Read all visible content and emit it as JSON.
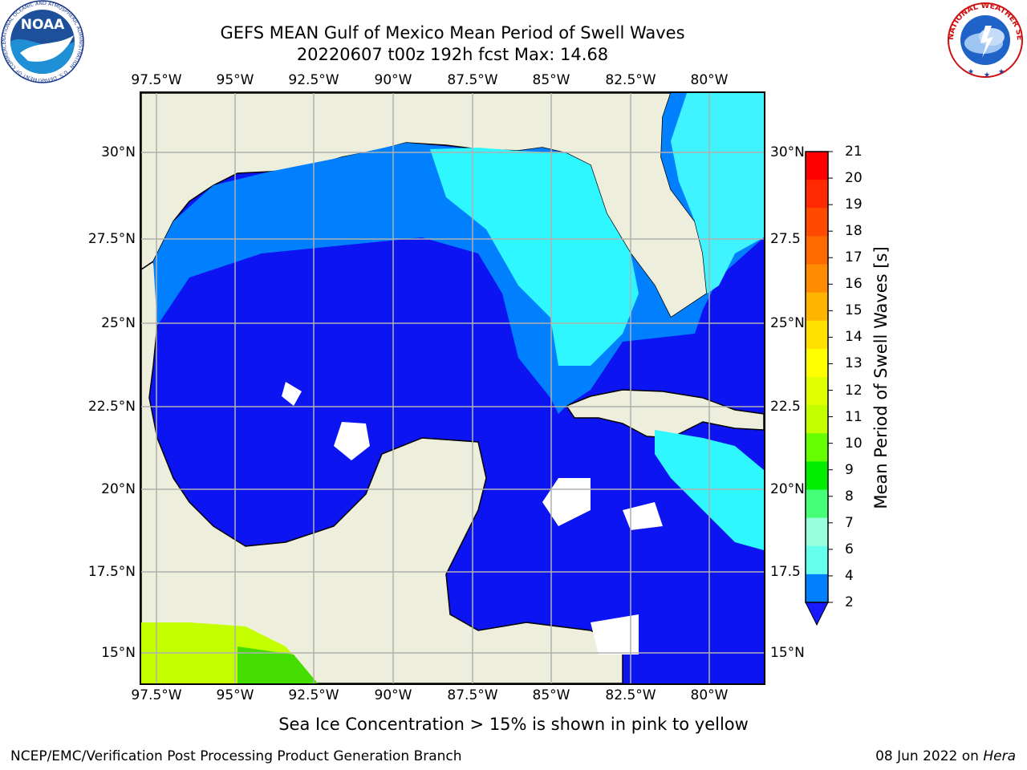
{
  "title": {
    "line1": "GEFS MEAN Gulf of Mexico Mean Period of Swell Waves",
    "line2": "20220607 t00z 192h fcst   Max: 14.68"
  },
  "axes": {
    "top_lon_labels": [
      "97.5°W",
      "95°W",
      "92.5°W",
      "90°W",
      "87.5°W",
      "85°W",
      "82.5°W",
      "80°W"
    ],
    "bottom_lon_labels": [
      "97.5°W",
      "95°W",
      "92.5°W",
      "90°W",
      "87.5°W",
      "85°W",
      "82.5°W",
      "80°W"
    ],
    "left_lat_labels": [
      "30°N",
      "27.5°N",
      "25°N",
      "22.5°N",
      "20°N",
      "17.5°N",
      "15°N"
    ],
    "right_lat_labels": [
      "30°N",
      "27.5",
      "25°N",
      "22.5",
      "20°N",
      "17.5",
      "15°N"
    ]
  },
  "colorbar": {
    "title": "Mean Period of Swell Waves [s]",
    "ticks": [
      "21",
      "20",
      "19",
      "18",
      "17",
      "16",
      "15",
      "14",
      "13",
      "12",
      "11",
      "10",
      "9",
      "8",
      "7",
      "6",
      "4",
      "2"
    ],
    "colors": [
      "#ff0000",
      "#ff2a00",
      "#ff4a00",
      "#ff6a00",
      "#ff8c00",
      "#ffb400",
      "#ffe100",
      "#ffff00",
      "#e0ff00",
      "#c4ff00",
      "#66ff00",
      "#00ee00",
      "#44ff77",
      "#99ffdd",
      "#66ffee",
      "#2ff7ff",
      "#00e0ff",
      "#0080ff",
      "#1a1aff"
    ]
  },
  "note": "Sea Ice Concentration > 15% is shown in pink to yellow",
  "footer": {
    "left": "NCEP/EMC/Verification Post Processing Product Generation Branch",
    "date": "08 Jun 2022 on ",
    "machine": "Hera"
  },
  "logos": {
    "noaa_text": "NOAA",
    "noaa_ring_text": "NATIONAL OCEANIC AND ATMOSPHERIC ADMINISTRATION · U.S. DEPARTMENT OF COMMERCE",
    "nws_ring_text": "NATIONAL WEATHER SERVICE"
  },
  "chart_data": {
    "type": "heatmap",
    "lon_range": [
      -98.0,
      -78.2
    ],
    "lat_range": [
      14.0,
      32.0
    ],
    "grid": true,
    "colorbar_range": [
      2,
      21
    ],
    "max_value": 14.68,
    "units": "s"
  }
}
